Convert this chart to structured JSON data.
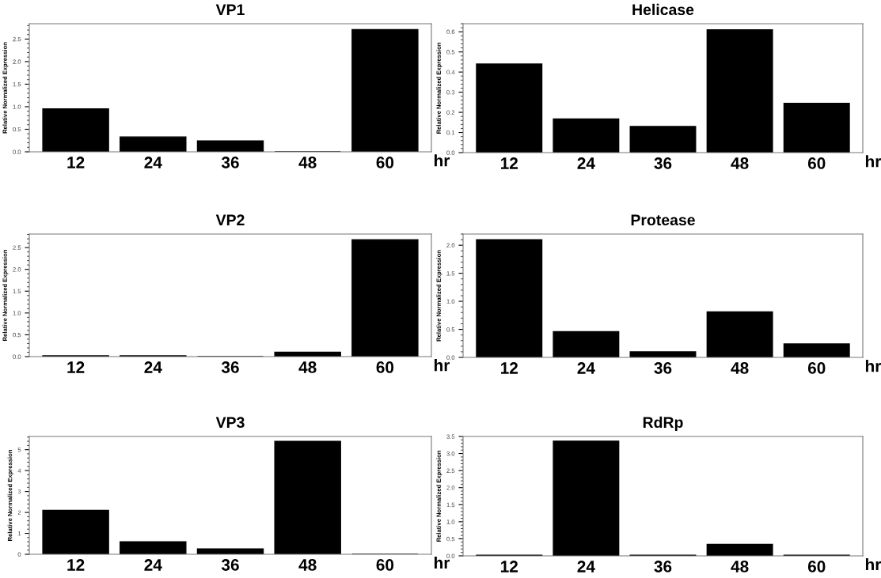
{
  "chart_data": [
    {
      "type": "bar",
      "title": "VP1",
      "ylabel": "Relative Normalized Expression",
      "xlabel": "hr",
      "categories": [
        "12",
        "24",
        "36",
        "48",
        "60"
      ],
      "values": [
        0.95,
        0.33,
        0.24,
        0,
        2.71
      ],
      "color": "#000000",
      "ylim": [
        0,
        2.84
      ],
      "yticks": [
        {
          "value": 0,
          "label": "0.0"
        },
        0.5,
        {
          "value": 1,
          "label": "1.0"
        },
        1.5,
        {
          "value": 2,
          "label": "2.0"
        },
        2.5
      ],
      "grid": false
    },
    {
      "type": "bar",
      "title": "Helicase",
      "ylabel": "Relative Normalized Expression",
      "xlabel": "hr",
      "categories": [
        "12",
        "24",
        "36",
        "48",
        "60"
      ],
      "values": [
        0.44,
        0.167,
        0.13,
        0.61,
        0.245
      ],
      "color": "#000000",
      "ylim": [
        0,
        0.64
      ],
      "yticks": [
        {
          "value": 0,
          "label": "0.0"
        },
        0.1,
        0.2,
        0.3,
        0.4,
        0.5,
        0.6
      ],
      "grid": false
    },
    {
      "type": "bar",
      "title": "VP2",
      "ylabel": "Relative Normalized Expression",
      "xlabel": "hr",
      "categories": [
        "12",
        "24",
        "36",
        "48",
        "60"
      ],
      "values": [
        0.02,
        0.02,
        0,
        0.1,
        2.68
      ],
      "color": "#000000",
      "ylim": [
        0,
        2.81
      ],
      "yticks": [
        {
          "value": 0,
          "label": "0.0"
        },
        0.5,
        {
          "value": 1,
          "label": "1.0"
        },
        1.5,
        {
          "value": 2,
          "label": "2.0"
        },
        2.5
      ],
      "grid": false
    },
    {
      "type": "bar",
      "title": "Protease",
      "ylabel": "Relative Normalized Expression",
      "xlabel": "hr",
      "categories": [
        "12",
        "24",
        "36",
        "48",
        "60"
      ],
      "values": [
        2.1,
        0.46,
        0.1,
        0.81,
        0.24
      ],
      "color": "#000000",
      "ylim": [
        0,
        2.2
      ],
      "yticks": [
        {
          "value": 0,
          "label": "0.0"
        },
        0.5,
        {
          "value": 1,
          "label": "1.0"
        },
        1.5,
        {
          "value": 2,
          "label": "2.0"
        }
      ],
      "grid": false
    },
    {
      "type": "bar",
      "title": "VP3",
      "ylabel": "Relative Normalized Expression",
      "xlabel": "hr",
      "categories": [
        "12",
        "24",
        "36",
        "48",
        "60"
      ],
      "values": [
        2.1,
        0.6,
        0.26,
        5.4,
        0
      ],
      "color": "#000000",
      "ylim": [
        0,
        5.63
      ],
      "yticks": [
        0,
        1,
        2,
        3,
        4,
        5
      ],
      "grid": false
    },
    {
      "type": "bar",
      "title": "RdRp",
      "ylabel": "Relative Normalized Expression",
      "xlabel": "hr",
      "categories": [
        "12",
        "24",
        "36",
        "48",
        "60"
      ],
      "values": [
        0.02,
        3.36,
        0.02,
        0.34,
        0.02
      ],
      "color": "#000000",
      "ylim": [
        0,
        3.5
      ],
      "yticks": [
        {
          "value": 0,
          "label": "0.0"
        },
        0.5,
        {
          "value": 1,
          "label": "1.0"
        },
        1.5,
        {
          "value": 2,
          "label": "2.0"
        },
        2.5,
        {
          "value": 3,
          "label": "3.0"
        },
        3.5
      ],
      "grid": false
    }
  ]
}
